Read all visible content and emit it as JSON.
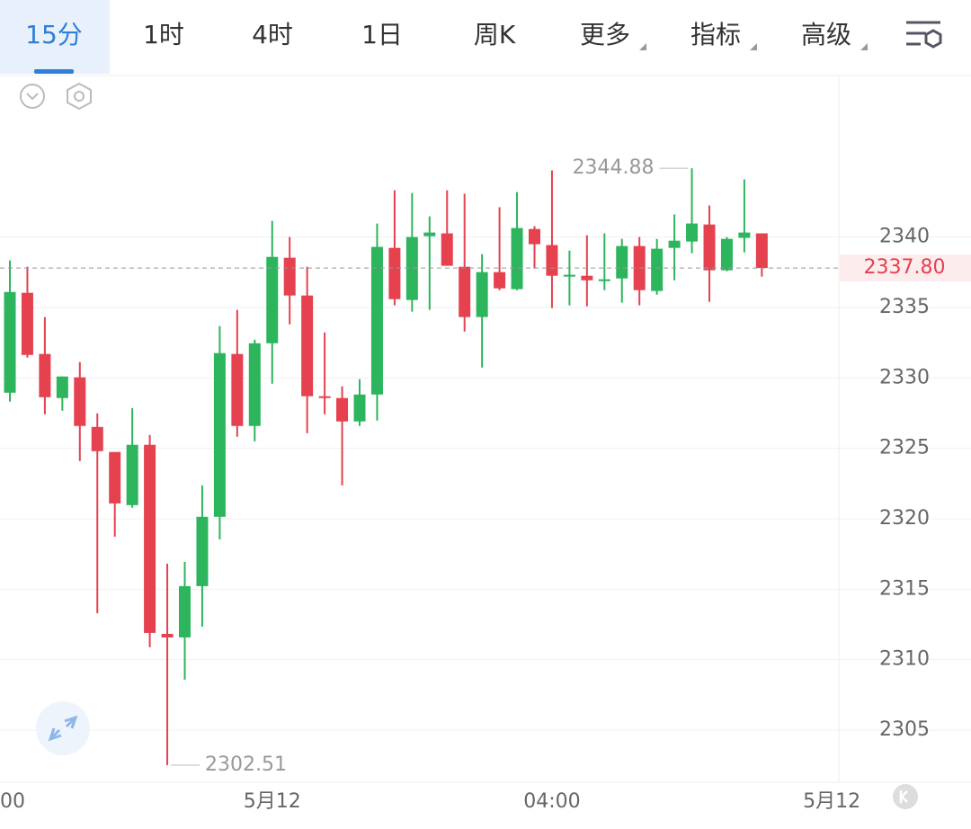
{
  "tabs": [
    "15分",
    "1时",
    "4时",
    "1日",
    "周K",
    "更多",
    "指标",
    "高级"
  ],
  "chart_data": {
    "type": "candlestick",
    "series": [
      {
        "up_color": "#2db55d",
        "down_color": "#e5414f",
        "open": [
          2328.95,
          2336.04,
          2331.7,
          2328.57,
          2330.04,
          2326.52,
          2324.74,
          2320.97,
          2325.25,
          2311.83,
          2311.58,
          2315.22,
          2320.14,
          2331.7,
          2326.59,
          2332.46,
          2338.53,
          2335.85,
          2328.7,
          2328.57,
          2326.91,
          2328.82,
          2339.23,
          2335.53,
          2340.06,
          2340.26,
          2337.89,
          2334.32,
          2337.51,
          2336.3,
          2340.57,
          2339.43,
          2337.19,
          2337.25,
          2336.87,
          2337.06,
          2339.36,
          2336.17,
          2339.23,
          2339.68,
          2340.89,
          2337.64,
          2339.94,
          2340.26
        ],
        "high": [
          2338.34,
          2337.89,
          2334.32,
          2330.1,
          2331.12,
          2327.48,
          2324.74,
          2327.86,
          2325.95,
          2316.82,
          2316.94,
          2322.37,
          2333.68,
          2334.83,
          2332.72,
          2341.15,
          2340.0,
          2337.89,
          2333.23,
          2329.4,
          2329.91,
          2340.96,
          2343.32,
          2343.13,
          2341.47,
          2343.32,
          2343.07,
          2338.79,
          2342.11,
          2343.19,
          2340.77,
          2344.73,
          2339.04,
          2340.13,
          2340.26,
          2339.87,
          2340.0,
          2339.87,
          2341.6,
          2344.88,
          2342.24,
          2340.0,
          2344.09,
          2340.26
        ],
        "low": [
          2328.31,
          2331.44,
          2327.42,
          2327.67,
          2324.1,
          2313.3,
          2318.73,
          2320.78,
          2310.88,
          2302.51,
          2308.58,
          2312.34,
          2318.54,
          2325.82,
          2325.5,
          2329.59,
          2333.8,
          2326.08,
          2327.42,
          2322.37,
          2326.59,
          2326.97,
          2335.15,
          2334.7,
          2334.83,
          2337.96,
          2333.29,
          2330.74,
          2336.23,
          2336.23,
          2337.76,
          2334.95,
          2335.15,
          2335.08,
          2336.23,
          2335.34,
          2335.15,
          2335.91,
          2336.93,
          2338.85,
          2335.4,
          2337.57,
          2338.91,
          2337.19
        ],
        "close": [
          2336.1,
          2331.63,
          2328.63,
          2330.1,
          2326.59,
          2324.8,
          2321.09,
          2325.25,
          2311.9,
          2311.58,
          2315.22,
          2320.14,
          2331.76,
          2326.59,
          2332.46,
          2338.59,
          2335.85,
          2328.7,
          2328.57,
          2326.91,
          2328.82,
          2339.3,
          2335.59,
          2340.0,
          2340.32,
          2337.96,
          2334.32,
          2337.51,
          2336.36,
          2340.64,
          2339.49,
          2337.25,
          2337.32,
          2336.93,
          2337.0,
          2339.36,
          2336.23,
          2339.17,
          2339.74,
          2340.96,
          2337.64,
          2339.87,
          2340.32,
          2337.8
        ]
      }
    ],
    "ylim": [
      2301.3,
      2351.4
    ],
    "yticks": [
      2305,
      2310,
      2315,
      2320,
      2325,
      2330,
      2335,
      2340
    ],
    "xticks": [
      {
        "value": -1,
        "label": "00"
      },
      {
        "value": 15,
        "label": "5月12"
      },
      {
        "value": 31,
        "label": "04:00"
      },
      {
        "value": 47,
        "label": "5月12"
      }
    ],
    "grid": true,
    "max_label": 2344.88,
    "min_label": 2302.51,
    "last_price": {
      "value": 2337.8,
      "label": "2337.80"
    }
  }
}
